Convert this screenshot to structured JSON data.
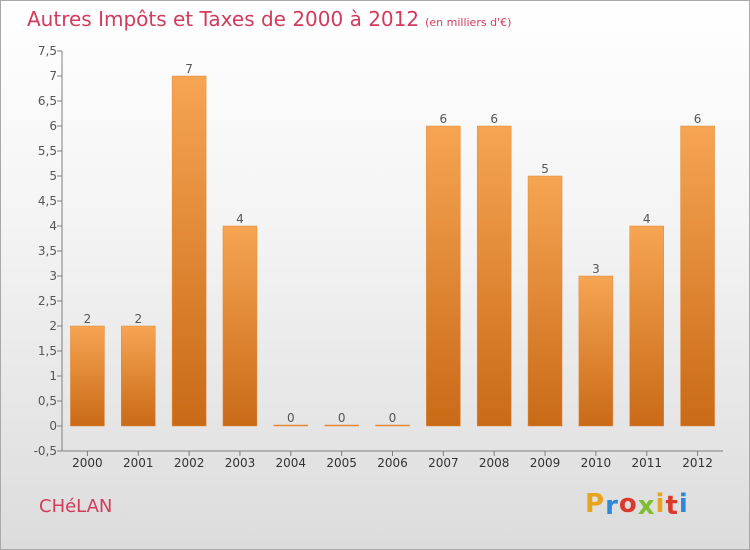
{
  "chart_data": {
    "type": "bar",
    "title": "Autres Impôts et Taxes de 2000 à 2012",
    "unit_label": "(en milliers d'€)",
    "categories": [
      "2000",
      "2001",
      "2002",
      "2003",
      "2004",
      "2005",
      "2006",
      "2007",
      "2008",
      "2009",
      "2010",
      "2011",
      "2012"
    ],
    "values": [
      2,
      2,
      7,
      4,
      0,
      0,
      0,
      6,
      6,
      5,
      3,
      4,
      6
    ],
    "value_labels": [
      "2",
      "2",
      "7",
      "4",
      "0",
      "0",
      "0",
      "6",
      "6",
      "5",
      "3",
      "4",
      "6"
    ],
    "ylim": [
      -0.5,
      7.5
    ],
    "yticks": [
      "-0,5",
      "0",
      "0,5",
      "1",
      "1,5",
      "2",
      "2,5",
      "3",
      "3,5",
      "4",
      "4,5",
      "5",
      "5,5",
      "6",
      "6,5",
      "7",
      "7,5"
    ],
    "grid": false,
    "colors": {
      "bar_top": "#f6a553",
      "bar_bottom": "#c96a17",
      "title": "#d23b5c"
    }
  },
  "commune": "CHéLAN",
  "logo": {
    "letters": [
      "P",
      "r",
      "o",
      "x",
      "i",
      "t",
      "i"
    ],
    "colors": [
      "#e9a41e",
      "#2f87d8",
      "#d93a2b",
      "#7dbf2f",
      "#e9a41e",
      "#d93a2b",
      "#2f87d8"
    ]
  }
}
